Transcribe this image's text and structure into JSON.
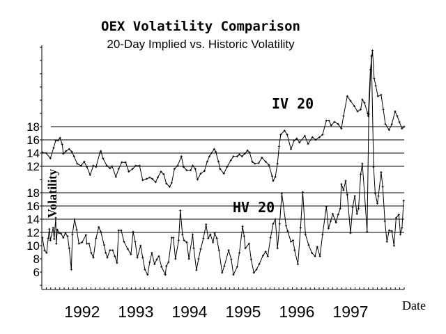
{
  "chart_data": {
    "type": "line",
    "title": "OEX Volatility Comparison",
    "subtitle": "20-Day Implied vs. Historic Volatility",
    "xlabel": "Date",
    "ylabel": "Volatility",
    "x_tick_labels": [
      "1992",
      "1993",
      "1994",
      "1995",
      "1996",
      "1997"
    ],
    "xlim": [
      1991.75,
      1998.5
    ],
    "grid": true,
    "line_color": "#000000",
    "marker": "plus",
    "panels": [
      {
        "label": "IV 20",
        "y_tick_labels": [
          "18",
          "16",
          "14",
          "12"
        ],
        "grid_values": [
          18,
          16,
          14,
          12
        ],
        "x": [
          1991.76,
          1991.83,
          1991.91,
          1991.97,
          1992.01,
          1992.05,
          1992.09,
          1992.13,
          1992.15,
          1992.2,
          1992.26,
          1992.31,
          1992.35,
          1992.41,
          1992.48,
          1992.54,
          1992.59,
          1992.65,
          1992.71,
          1992.76,
          1992.83,
          1992.85,
          1992.89,
          1992.96,
          1993.02,
          1993.06,
          1993.13,
          1993.18,
          1993.24,
          1993.31,
          1993.37,
          1993.44,
          1993.5,
          1993.57,
          1993.63,
          1993.7,
          1993.76,
          1993.81,
          1993.87,
          1993.91,
          1993.97,
          1994.02,
          1994.07,
          1994.13,
          1994.17,
          1994.22,
          1994.28,
          1994.35,
          1994.39,
          1994.45,
          1994.52,
          1994.56,
          1994.61,
          1994.65,
          1994.71,
          1994.78,
          1994.83,
          1994.87,
          1994.91,
          1994.96,
          1994.99,
          1995.04,
          1995.07,
          1995.14,
          1995.2,
          1995.27,
          1995.32,
          1995.39,
          1995.43,
          1995.48,
          1995.53,
          1995.58,
          1995.62,
          1995.67,
          1995.72,
          1995.79,
          1995.85,
          1995.92,
          1995.98,
          1996.04,
          1996.06,
          1996.1,
          1996.14,
          1996.17,
          1996.2,
          1996.27,
          1996.32,
          1996.39,
          1996.45,
          1996.5,
          1996.55,
          1996.65,
          1996.71,
          1996.79,
          1996.85,
          1996.92,
          1996.98,
          1997.05,
          1997.1,
          1997.14,
          1997.2,
          1997.27,
          1997.33,
          1997.37,
          1997.44,
          1997.5,
          1997.57,
          1997.63,
          1997.69,
          1997.72,
          1997.76,
          1997.82,
          1997.83,
          1997.87,
          1997.91,
          1997.94,
          1997.97,
          1998.01,
          1998.07,
          1998.11,
          1998.15,
          1998.22,
          1998.27,
          1998.33,
          1998.37,
          1998.41,
          1998.46,
          1998.5
        ],
        "y": [
          14.1,
          14.0,
          13.2,
          14.8,
          15.9,
          15.9,
          16.3,
          15.3,
          13.9,
          14.3,
          14.6,
          14.2,
          13.5,
          12.4,
          12.1,
          12.7,
          11.9,
          10.7,
          12.1,
          11.9,
          14.0,
          14.3,
          13.2,
          12.1,
          11.7,
          12.0,
          10.4,
          11.6,
          12.6,
          12.6,
          11.2,
          11.6,
          12.1,
          12.1,
          9.9,
          10.1,
          10.3,
          10.1,
          9.6,
          10.3,
          11.2,
          10.8,
          9.4,
          8.9,
          9.5,
          11.6,
          12.1,
          13.5,
          11.9,
          11.4,
          11.4,
          12.1,
          11.6,
          10.0,
          10.9,
          11.3,
          12.7,
          13.5,
          14.0,
          14.6,
          14.2,
          12.7,
          11.6,
          10.9,
          11.9,
          12.9,
          13.5,
          13.5,
          13.8,
          13.5,
          13.9,
          14.4,
          14.1,
          12.7,
          12.4,
          12.5,
          13.3,
          12.7,
          12.2,
          10.5,
          9.8,
          10.4,
          12.4,
          15.0,
          16.8,
          17.4,
          16.8,
          14.6,
          15.9,
          16.2,
          15.6,
          16.6,
          15.4,
          16.4,
          16.0,
          16.4,
          16.8,
          18.9,
          18.9,
          18.2,
          18.7,
          18.4,
          17.7,
          19.6,
          22.6,
          21.9,
          21.1,
          20.3,
          20.6,
          22.1,
          21.6,
          20.0,
          19.6,
          26.6,
          29.5,
          25.3,
          24.2,
          22.6,
          22.8,
          20.6,
          18.4,
          17.5,
          18.4,
          20.3,
          19.6,
          18.7,
          17.7,
          18.0
        ]
      },
      {
        "label": "HV 20",
        "y_tick_labels": [
          "18",
          "16",
          "14",
          "12",
          "10",
          "8",
          "6"
        ],
        "grid_values": [
          18,
          16,
          14,
          12
        ],
        "x": [
          1991.76,
          1991.8,
          1991.84,
          1991.87,
          1991.89,
          1991.91,
          1991.96,
          1991.98,
          1992.01,
          1992.02,
          1992.04,
          1992.07,
          1992.11,
          1992.15,
          1992.19,
          1992.23,
          1992.26,
          1992.3,
          1992.32,
          1992.36,
          1992.4,
          1992.44,
          1992.5,
          1992.57,
          1992.59,
          1992.63,
          1992.67,
          1992.71,
          1992.76,
          1992.81,
          1992.85,
          1992.91,
          1992.94,
          1992.97,
          1993.02,
          1993.07,
          1993.11,
          1993.15,
          1993.18,
          1993.23,
          1993.28,
          1993.35,
          1993.41,
          1993.45,
          1993.49,
          1993.53,
          1993.59,
          1993.63,
          1993.67,
          1993.72,
          1993.76,
          1993.8,
          1993.85,
          1993.89,
          1993.93,
          1993.98,
          1994.05,
          1994.07,
          1994.11,
          1994.17,
          1994.2,
          1994.24,
          1994.3,
          1994.33,
          1994.37,
          1994.4,
          1994.45,
          1994.49,
          1994.56,
          1994.58,
          1994.63,
          1994.67,
          1994.71,
          1994.76,
          1994.81,
          1994.85,
          1994.89,
          1994.94,
          1994.97,
          1995.01,
          1995.05,
          1995.11,
          1995.15,
          1995.23,
          1995.28,
          1995.32,
          1995.39,
          1995.43,
          1995.49,
          1995.52,
          1995.54,
          1995.61,
          1995.65,
          1995.7,
          1995.75,
          1995.8,
          1995.87,
          1995.92,
          1995.96,
          1996.01,
          1996.06,
          1996.1,
          1996.14,
          1996.18,
          1996.22,
          1996.3,
          1996.33,
          1996.39,
          1996.43,
          1996.46,
          1996.52,
          1996.57,
          1996.61,
          1996.66,
          1996.72,
          1996.78,
          1996.84,
          1996.88,
          1996.93,
          1996.98,
          1997.05,
          1997.09,
          1997.13,
          1997.17,
          1997.23,
          1997.27,
          1997.31,
          1997.33,
          1997.37,
          1997.41,
          1997.44,
          1997.5,
          1997.54,
          1997.58,
          1997.62,
          1997.65,
          1997.69,
          1997.72,
          1997.76,
          1997.81,
          1997.84,
          1997.89,
          1997.93,
          1997.96,
          1998.0,
          1998.02,
          1998.07,
          1998.1,
          1998.14,
          1998.18,
          1998.22,
          1998.27,
          1998.31,
          1998.35,
          1998.4,
          1998.43,
          1998.46,
          1998.49
        ],
        "y": [
          11.2,
          9.3,
          8.9,
          11.1,
          12.5,
          10.8,
          12.7,
          11.0,
          14.2,
          10.3,
          12.4,
          11.9,
          11.8,
          11.2,
          11.9,
          11.4,
          9.6,
          6.4,
          11.7,
          14.0,
          12.4,
          10.3,
          10.5,
          11.6,
          10.3,
          10.3,
          8.9,
          8.2,
          11.1,
          12.8,
          12.1,
          10.1,
          8.9,
          8.2,
          9.3,
          9.3,
          8.4,
          7.4,
          12.3,
          12.3,
          10.6,
          9.5,
          8.7,
          12.1,
          10.6,
          8.2,
          10.0,
          8.2,
          6.4,
          5.6,
          7.5,
          8.9,
          7.2,
          7.9,
          8.4,
          6.8,
          5.6,
          6.9,
          7.5,
          11.2,
          11.2,
          8.0,
          10.8,
          15.3,
          11.7,
          10.8,
          10.5,
          8.0,
          11.7,
          9.6,
          6.3,
          8.0,
          9.5,
          11.1,
          13.2,
          11.1,
          11.7,
          10.5,
          11.9,
          11.1,
          9.3,
          5.9,
          6.9,
          9.3,
          7.9,
          5.6,
          6.8,
          8.9,
          12.9,
          11.4,
          9.6,
          10.3,
          7.9,
          5.9,
          6.4,
          7.2,
          8.5,
          9.1,
          8.4,
          11.2,
          13.3,
          14.0,
          9.6,
          13.3,
          17.9,
          13.0,
          12.2,
          10.6,
          10.8,
          9.3,
          7.2,
          12.7,
          18.1,
          11.7,
          10.1,
          8.9,
          8.4,
          9.8,
          8.4,
          11.7,
          15.9,
          12.6,
          13.7,
          14.8,
          13.5,
          14.7,
          15.6,
          19.3,
          18.4,
          19.8,
          17.7,
          11.9,
          15.8,
          17.5,
          14.8,
          15.6,
          20.8,
          22.4,
          18.0,
          12.1,
          29.9,
          38.7,
          21.9,
          17.9,
          16.4,
          17.5,
          21.1,
          18.9,
          13.7,
          10.6,
          12.3,
          12.2,
          10.0,
          14.2,
          14.7,
          11.7,
          12.7,
          16.8
        ]
      }
    ]
  }
}
